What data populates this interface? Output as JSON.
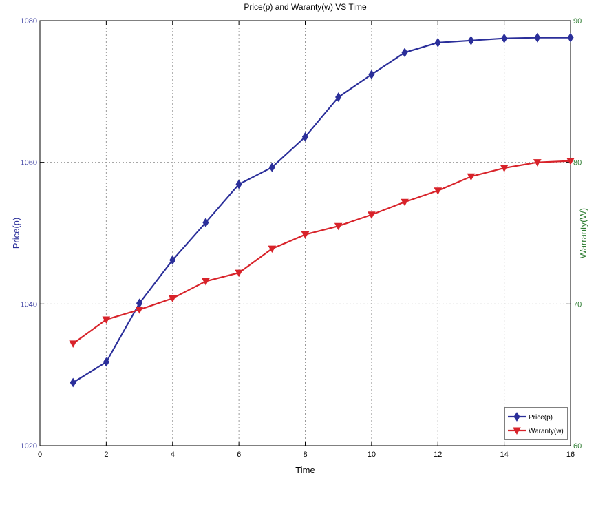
{
  "chart_data": {
    "type": "line",
    "title": "Price(p) and Waranty(w) VS Time",
    "xlabel": "Time",
    "ylabel_left": "Price(p)",
    "ylabel_right": "Warranty(W)",
    "xlim": [
      0,
      16
    ],
    "ylim_left": [
      1020,
      1080
    ],
    "ylim_right": [
      60,
      90
    ],
    "x_ticks": [
      0,
      2,
      4,
      6,
      8,
      10,
      12,
      14,
      16
    ],
    "y_ticks_left": [
      1020,
      1040,
      1060,
      1080
    ],
    "y_ticks_right": [
      60,
      70,
      80,
      90
    ],
    "grid": true,
    "legend_position": "bottom-right",
    "x": [
      1,
      2,
      3,
      4,
      5,
      6,
      7,
      8,
      9,
      10,
      11,
      12,
      13,
      14,
      15,
      16
    ],
    "series": [
      {
        "name": "Price(p)",
        "axis": "left",
        "marker": "diamond",
        "color": "#2b2f9a",
        "values": [
          1028.9,
          1031.8,
          1040.1,
          1046.2,
          1051.5,
          1056.9,
          1059.3,
          1063.6,
          1069.2,
          1072.4,
          1075.5,
          1076.9,
          1077.2,
          1077.5,
          1077.6,
          1077.6
        ]
      },
      {
        "name": "Waranty(w)",
        "axis": "right",
        "marker": "triangle-down",
        "color": "#d8232a",
        "values": [
          67.2,
          68.9,
          69.6,
          70.4,
          71.6,
          72.2,
          73.9,
          74.9,
          75.5,
          76.3,
          77.2,
          78.0,
          79.0,
          79.6,
          80.0,
          80.1
        ]
      }
    ]
  },
  "colors": {
    "left_axis": "#2b2f9a",
    "right_axis": "#2e7d32",
    "grid": "#9a9a9a"
  }
}
